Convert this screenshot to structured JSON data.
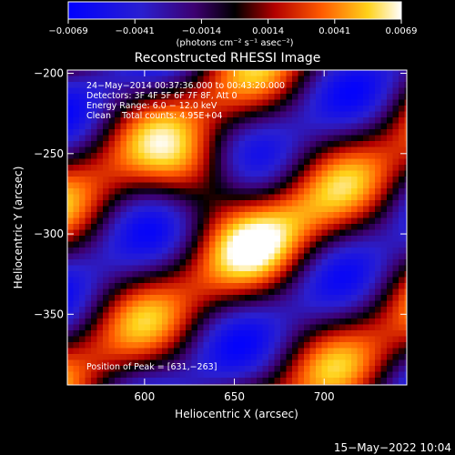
{
  "colorbar": {
    "ticks": [
      "−0.0069",
      "−0.0041",
      "−0.0014",
      "0.0014",
      "0.0041",
      "0.0069"
    ],
    "units": "(photons cm⁻² s⁻¹ asec⁻²)",
    "min": -0.0069,
    "max": 0.0069
  },
  "image": {
    "title": "Reconstructed RHESSI Image",
    "info_lines": [
      "24−May−2014 00:37:36.000 to 00:43:20.000",
      "Detectors: 3F 4F 5F 6F 7F 8F, Att 0",
      "Energy Range: 6.0 − 12.0 keV",
      "Clean    Total counts: 4.95E+04"
    ],
    "peak_text": "Position of Peak = [631,−263]",
    "footer_date": "15−May−2022 10:04"
  },
  "chart_data": {
    "type": "heatmap",
    "title": "Reconstructed RHESSI Image",
    "xlabel": "Heliocentric X (arcsec)",
    "ylabel": "Heliocentric Y (arcsec)",
    "xlim": [
      557,
      746
    ],
    "ylim": [
      -394,
      -198
    ],
    "xticks": [
      600,
      650,
      700
    ],
    "yticks": [
      -200,
      -250,
      -300,
      -350
    ],
    "xtick_labels": [
      "600",
      "650",
      "700"
    ],
    "ytick_labels": [
      "−200",
      "−250",
      "−300",
      "−350"
    ],
    "peak": [
      631,
      -263
    ],
    "value_range": [
      -0.0069,
      0.0069
    ],
    "colormap": "blue-black-red-yellow-white"
  }
}
